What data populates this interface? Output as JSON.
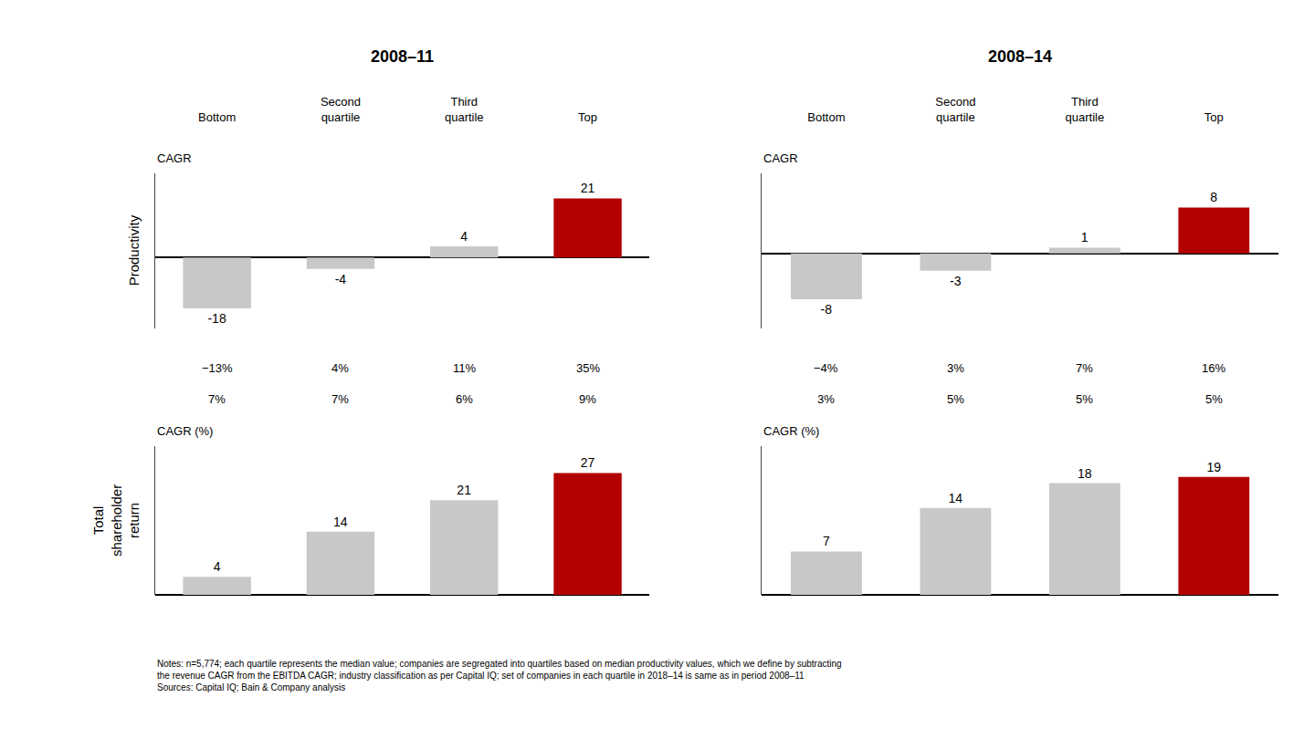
{
  "chart_data": [
    {
      "type": "bar",
      "title": "2008–11",
      "ylabel": "Productivity",
      "subtitle": "CAGR",
      "categories": [
        "Bottom",
        "Second\nquartile",
        "Third\nquartile",
        "Top"
      ],
      "values": [
        -18,
        -4,
        4,
        21
      ],
      "colors": [
        "#c8c8c8",
        "#c8c8c8",
        "#c8c8c8",
        "#b30000"
      ],
      "ylim": [
        -25,
        30
      ],
      "grid": false,
      "data_labels": true,
      "tick_labels": "x",
      "annotations": [
        [
          "−13%",
          "4%",
          "11%",
          "35%"
        ],
        [
          "7%",
          "7%",
          "6%",
          "9%"
        ]
      ]
    },
    {
      "type": "bar",
      "title": "2008–14",
      "subtitle": "CAGR",
      "categories": [
        "Bottom",
        "Second\nquartile",
        "Third\nquartile",
        "Top"
      ],
      "values": [
        -8,
        -3,
        1,
        8
      ],
      "colors": [
        "#c8c8c8",
        "#c8c8c8",
        "#c8c8c8",
        "#b30000"
      ],
      "ylim": [
        -13,
        14
      ],
      "grid": false,
      "data_labels": true,
      "tick_labels": "x",
      "annotations": [
        [
          "−4%",
          "3%",
          "7%",
          "16%"
        ],
        [
          "3%",
          "5%",
          "5%",
          "5%"
        ]
      ]
    },
    {
      "type": "bar",
      "ylabel": "Total\nshareholder\nreturn",
      "subtitle": "CAGR (%)",
      "categories": [
        "Bottom",
        "Second\nquartile",
        "Third\nquartile",
        "Top"
      ],
      "values": [
        4,
        14,
        21,
        27
      ],
      "colors": [
        "#c8c8c8",
        "#c8c8c8",
        "#c8c8c8",
        "#b30000"
      ],
      "ylim": [
        0,
        33
      ],
      "grid": false,
      "data_labels": true,
      "tick_labels": false
    },
    {
      "type": "bar",
      "subtitle": "CAGR (%)",
      "categories": [
        "Bottom",
        "Second\nquartile",
        "Third\nquartile",
        "Top"
      ],
      "values": [
        7,
        14,
        18,
        19
      ],
      "colors": [
        "#c8c8c8",
        "#c8c8c8",
        "#c8c8c8",
        "#b30000"
      ],
      "ylim": [
        0,
        24
      ],
      "grid": false,
      "data_labels": true,
      "tick_labels": false
    }
  ],
  "notes": [
    "Notes: n=5,774; each quartile represents the median value; companies are segregated into quartiles based on median productivity values, which we define by subtracting",
    "the revenue CAGR from the EBITDA CAGR; industry classification as per Capital IQ; set of companies in each quartile in 2018–14 is same as in period 2008–11",
    "Sources: Capital IQ; Bain & Company analysis"
  ]
}
